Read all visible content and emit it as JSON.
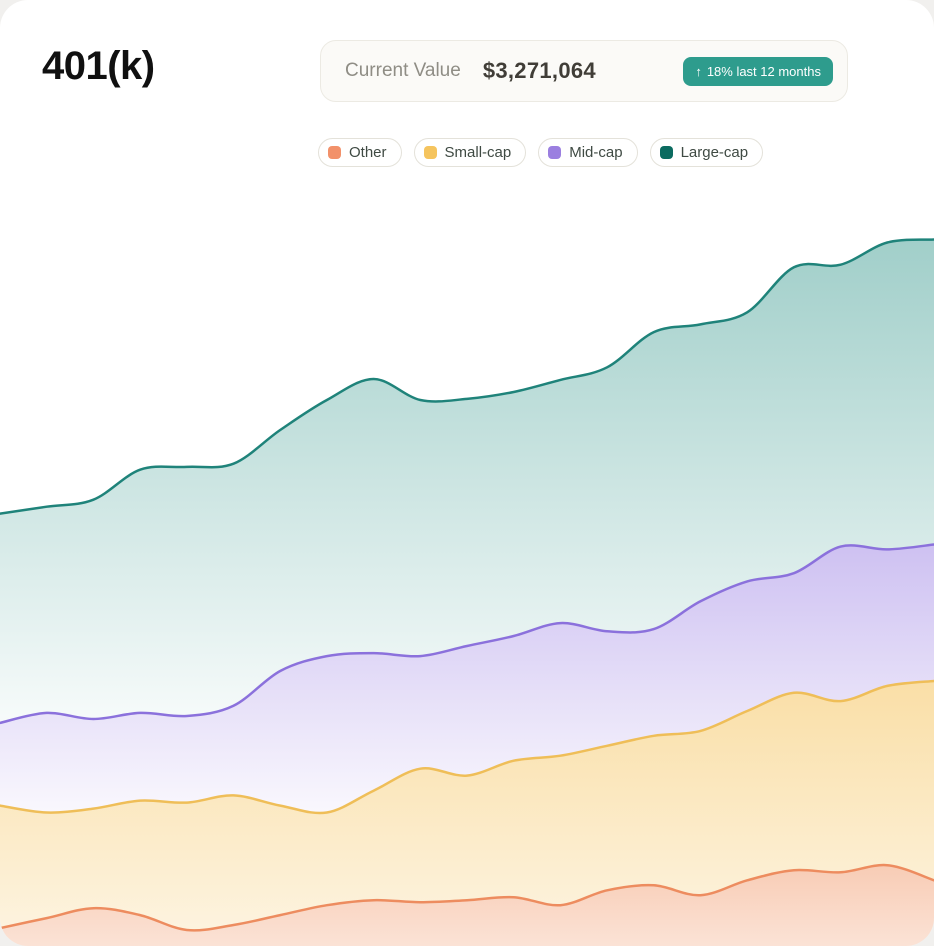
{
  "header": {
    "title": "401(k)",
    "current_value_label": "Current Value",
    "current_value": "$3,271,064",
    "badge": {
      "arrow": "↑",
      "label": "18% last 12 months",
      "bg": "#2E9C8D"
    }
  },
  "legend": [
    {
      "label": "Other",
      "color": "#F2916A"
    },
    {
      "label": "Small-cap",
      "color": "#F5C45E"
    },
    {
      "label": "Mid-cap",
      "color": "#9B7FE0"
    },
    {
      "label": "Large-cap",
      "color": "#0B6B60"
    }
  ],
  "chart_data": {
    "type": "area",
    "stacked": true,
    "xlabel": "",
    "ylabel": "",
    "x": [
      0,
      1,
      2,
      3,
      4,
      5,
      6,
      7,
      8,
      9,
      10,
      11,
      12,
      13,
      14,
      15,
      16,
      17,
      18,
      19,
      20
    ],
    "ylim": [
      0,
      3500
    ],
    "values_unit": "USD thousands (estimated from chart)",
    "grid": false,
    "legend_position": "top",
    "series": [
      {
        "name": "Other",
        "line_color": "#ED8C5F",
        "fill_color": "#F1996B",
        "fill_top_opacity": 0.5,
        "fill_bottom_opacity": 0.28,
        "values": [
          83,
          129,
          175,
          143,
          74,
          97,
          143,
          189,
          212,
          203,
          212,
          226,
          189,
          258,
          281,
          235,
          304,
          351,
          341,
          374,
          304
        ]
      },
      {
        "name": "Small-cap",
        "line_color": "#EFBE58",
        "fill_color": "#F5C45E",
        "fill_top_opacity": 0.55,
        "fill_bottom_opacity": 0.2,
        "values": [
          567,
          489,
          461,
          530,
          590,
          600,
          507,
          429,
          507,
          618,
          577,
          632,
          692,
          669,
          692,
          761,
          784,
          821,
          793,
          830,
          923
        ]
      },
      {
        "name": "Mid-cap",
        "line_color": "#8B71DC",
        "fill_color": "#9D83E4",
        "fill_top_opacity": 0.5,
        "fill_bottom_opacity": 0.06,
        "values": [
          383,
          461,
          415,
          406,
          401,
          415,
          623,
          724,
          637,
          521,
          600,
          577,
          614,
          530,
          494,
          600,
          600,
          554,
          715,
          632,
          632
        ]
      },
      {
        "name": "Large-cap",
        "line_color": "#1F837A",
        "fill_color": "#2E9488",
        "fill_top_opacity": 0.45,
        "fill_bottom_opacity": 0.04,
        "values": [
          969,
          955,
          1015,
          1126,
          1153,
          1121,
          1116,
          1186,
          1269,
          1186,
          1144,
          1130,
          1126,
          1222,
          1375,
          1282,
          1246,
          1416,
          1305,
          1421,
          1412
        ]
      }
    ]
  }
}
